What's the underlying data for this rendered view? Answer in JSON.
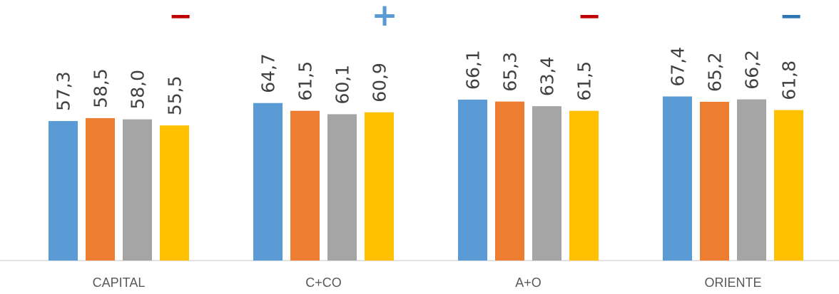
{
  "chart_data": {
    "type": "bar",
    "categories": [
      "CAPITAL",
      "C+CO",
      "A+O",
      "ORIENTE"
    ],
    "series": [
      {
        "values": [
          57.3,
          64.7,
          66.1,
          67.4
        ],
        "color": "#5B9BD5"
      },
      {
        "values": [
          58.5,
          61.5,
          65.3,
          65.2
        ],
        "color": "#ED7D31"
      },
      {
        "values": [
          58.0,
          60.1,
          63.4,
          66.2
        ],
        "color": "#A5A5A5"
      },
      {
        "values": [
          55.5,
          60.9,
          61.5,
          61.8
        ],
        "color": "#FFC000"
      }
    ],
    "value_labels": [
      [
        "57,3",
        "58,5",
        "58,0",
        "55,5"
      ],
      [
        "64,7",
        "61,5",
        "60,1",
        "60,9"
      ],
      [
        "66,1",
        "65,3",
        "63,4",
        "61,5"
      ],
      [
        "67,4",
        "65,2",
        "66,2",
        "61,8"
      ]
    ],
    "ylim": [
      0,
      100
    ],
    "grid": false,
    "change_markers": [
      {
        "symbol": "−",
        "color": "#C00000"
      },
      {
        "symbol": "+",
        "color": "#5B9BD5"
      },
      {
        "symbol": "−",
        "color": "#C00000"
      },
      {
        "symbol": "−",
        "color": "#2E75B6"
      }
    ]
  }
}
